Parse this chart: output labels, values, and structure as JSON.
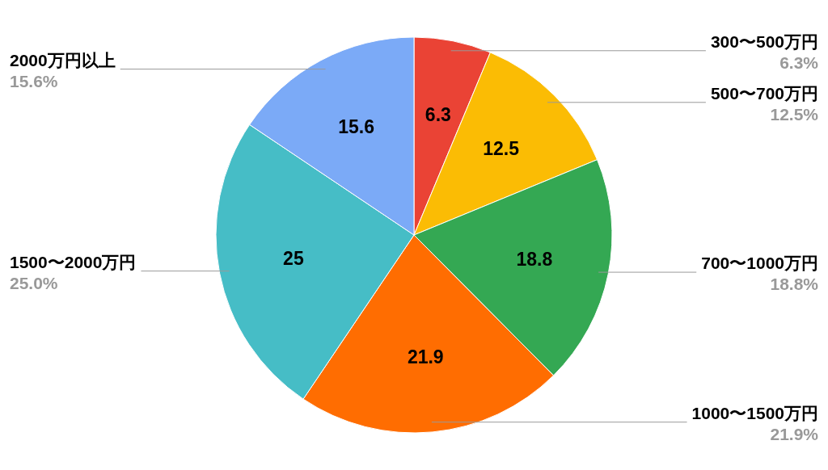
{
  "chart_data": {
    "type": "pie",
    "categories": [
      "300〜500万円",
      "500〜700万円",
      "700〜1000万円",
      "1000〜1500万円",
      "1500〜2000万円",
      "2000万円以上"
    ],
    "values": [
      6.3,
      12.5,
      18.8,
      21.9,
      25,
      15.6
    ],
    "colors": [
      "#ea4335",
      "#fbbc04",
      "#34a853",
      "#ff6d01",
      "#46bdc6",
      "#7baaf7"
    ],
    "value_labels": [
      "6.3",
      "12.5",
      "18.8",
      "21.9",
      "25",
      "15.6"
    ],
    "annotations": [
      "6.3%",
      "12.5%",
      "18.8%",
      "21.9%",
      "25.0%",
      "15.6%"
    ]
  }
}
